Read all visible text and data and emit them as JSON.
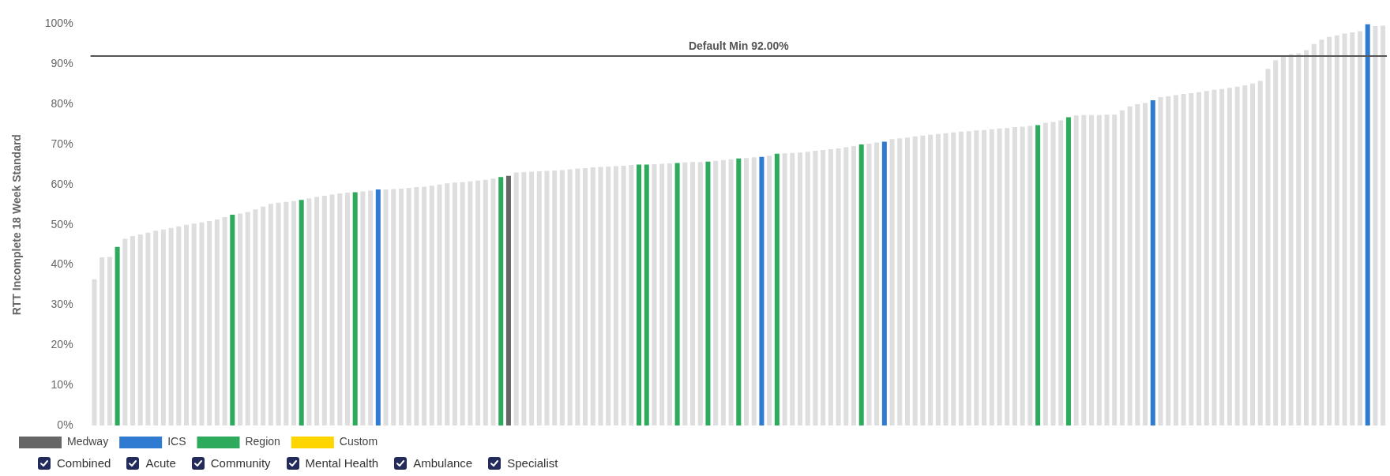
{
  "chart_data": {
    "type": "bar",
    "ylabel": "RTT Incomplete 18 Week Standard",
    "categories": [
      null,
      null,
      null,
      null,
      null,
      null,
      null,
      null,
      null,
      null,
      null,
      null,
      null,
      null,
      null,
      null,
      null,
      null,
      null,
      null,
      null,
      null,
      null,
      null,
      null,
      null,
      null,
      null,
      null,
      null,
      null,
      null,
      null,
      null,
      null,
      null,
      null,
      null,
      null,
      null,
      null,
      null,
      null,
      null,
      null,
      null,
      null,
      null,
      null,
      null,
      null,
      null,
      null,
      null,
      null,
      null,
      null,
      null,
      null,
      null,
      null,
      null,
      null,
      null,
      null,
      null,
      null,
      null,
      null,
      null,
      null,
      null,
      null,
      null,
      null,
      null,
      null,
      null,
      null,
      null,
      null,
      null,
      null,
      null,
      null,
      null,
      null,
      null,
      null,
      null,
      null,
      null,
      null,
      null,
      null,
      null,
      null,
      null,
      null,
      null,
      null,
      null,
      null,
      null,
      null,
      null,
      null,
      null,
      null,
      null,
      null,
      null,
      null,
      null,
      null,
      null,
      null,
      null,
      null,
      null,
      null,
      null,
      null,
      null,
      null,
      null,
      null,
      null,
      null,
      null,
      null,
      null,
      null,
      null,
      null,
      null,
      null,
      null,
      null,
      null,
      null,
      null,
      null,
      null,
      null,
      null,
      null,
      null,
      null,
      null,
      null,
      null,
      null,
      null,
      null,
      null,
      null,
      null,
      null,
      null,
      null,
      null,
      null,
      null,
      null,
      null,
      null,
      null,
      null
    ],
    "series": [
      {
        "name": "Medway",
        "color": "#666666",
        "values": [
          null,
          null,
          null,
          null,
          null,
          null,
          null,
          null,
          null,
          null,
          null,
          null,
          null,
          null,
          null,
          null,
          null,
          null,
          null,
          null,
          null,
          null,
          null,
          null,
          null,
          null,
          null,
          null,
          null,
          null,
          null,
          null,
          null,
          null,
          null,
          null,
          null,
          null,
          null,
          null,
          null,
          null,
          null,
          null,
          null,
          null,
          null,
          null,
          null,
          null,
          null,
          null,
          null,
          null,
          62.2,
          null,
          null,
          null,
          null,
          null,
          null,
          null,
          null,
          null,
          null,
          null,
          null,
          null,
          null,
          null,
          null,
          null,
          null,
          null,
          null,
          null,
          null,
          null,
          null,
          null,
          null,
          null,
          null,
          null,
          null,
          null,
          null,
          null,
          null,
          null,
          null,
          null,
          null,
          null,
          null,
          null,
          null,
          null,
          null,
          null,
          null,
          null,
          null,
          null,
          null,
          null,
          null,
          null,
          null,
          null,
          null,
          null,
          null,
          null,
          null,
          null,
          null,
          null,
          null,
          null,
          null,
          null,
          null,
          null,
          null,
          null,
          null,
          null,
          null,
          null,
          null,
          null,
          null,
          null,
          null,
          null,
          null,
          null,
          null,
          null,
          null,
          null,
          null,
          null,
          null,
          null,
          null,
          null,
          null,
          null,
          null,
          null,
          null,
          null,
          null,
          null,
          null,
          null,
          null,
          null,
          null,
          null,
          null,
          null,
          null,
          null,
          null,
          null,
          null
        ]
      },
      {
        "name": "ICS",
        "color": "#2f7bd1",
        "values": [
          null,
          null,
          null,
          null,
          null,
          null,
          null,
          null,
          null,
          null,
          null,
          null,
          null,
          null,
          null,
          null,
          null,
          null,
          null,
          null,
          null,
          null,
          null,
          null,
          null,
          null,
          null,
          null,
          null,
          null,
          null,
          null,
          null,
          null,
          null,
          null,
          null,
          58.8,
          null,
          null,
          null,
          null,
          null,
          null,
          null,
          null,
          null,
          null,
          null,
          null,
          null,
          null,
          null,
          null,
          null,
          null,
          null,
          null,
          null,
          null,
          null,
          null,
          null,
          null,
          null,
          null,
          null,
          null,
          null,
          null,
          null,
          null,
          null,
          null,
          null,
          null,
          null,
          null,
          null,
          null,
          null,
          null,
          null,
          null,
          null,
          null,
          null,
          66.9,
          null,
          null,
          null,
          null,
          null,
          null,
          null,
          null,
          null,
          null,
          null,
          null,
          null,
          null,
          null,
          70.7,
          null,
          null,
          null,
          null,
          null,
          null,
          null,
          null,
          null,
          null,
          null,
          null,
          null,
          null,
          null,
          null,
          null,
          null,
          null,
          null,
          null,
          null,
          null,
          null,
          null,
          null,
          null,
          null,
          null,
          null,
          null,
          null,
          null,
          null,
          81.0,
          null,
          null,
          null,
          null,
          null,
          null,
          null,
          null,
          null,
          null,
          null,
          null,
          null,
          null,
          null,
          null,
          null,
          null,
          null,
          null,
          null,
          null,
          null,
          null,
          null,
          null,
          null,
          100,
          null,
          null
        ]
      },
      {
        "name": "Region",
        "color": "#2eaa5c",
        "values": [
          null,
          null,
          null,
          44.5,
          null,
          null,
          null,
          null,
          null,
          null,
          null,
          null,
          null,
          null,
          null,
          null,
          null,
          null,
          52.5,
          null,
          null,
          null,
          null,
          null,
          null,
          null,
          null,
          56.2,
          null,
          null,
          null,
          null,
          null,
          null,
          58.1,
          null,
          null,
          null,
          null,
          null,
          null,
          null,
          null,
          null,
          null,
          null,
          null,
          null,
          null,
          null,
          null,
          null,
          null,
          61.9,
          null,
          null,
          null,
          null,
          null,
          null,
          null,
          null,
          null,
          null,
          null,
          null,
          null,
          null,
          null,
          null,
          null,
          65.0,
          65.0,
          null,
          null,
          null,
          65.4,
          null,
          null,
          null,
          65.7,
          null,
          null,
          null,
          66.5,
          null,
          null,
          null,
          null,
          67.7,
          null,
          null,
          null,
          null,
          null,
          null,
          null,
          null,
          null,
          null,
          70.0,
          null,
          null,
          null,
          null,
          null,
          null,
          null,
          null,
          null,
          null,
          null,
          null,
          null,
          null,
          null,
          null,
          null,
          null,
          null,
          null,
          null,
          null,
          74.8,
          null,
          null,
          null,
          76.8,
          null,
          null,
          null,
          null,
          null,
          null,
          null,
          null,
          null,
          null,
          null,
          null,
          null,
          null,
          null,
          null,
          null,
          null,
          null,
          null,
          null,
          null,
          null,
          null,
          null,
          null,
          null,
          null,
          null,
          null,
          null,
          null,
          null,
          null,
          null,
          null,
          null,
          null,
          null,
          null,
          null
        ]
      },
      {
        "name": "Custom",
        "color": "#ffd500",
        "values": [
          null,
          null,
          null,
          null,
          null,
          null,
          null,
          null,
          null,
          null,
          null,
          null,
          null,
          null,
          null,
          null,
          null,
          null,
          null,
          null,
          null,
          null,
          null,
          null,
          null,
          null,
          null,
          null,
          null,
          null,
          null,
          null,
          null,
          null,
          null,
          null,
          null,
          null,
          null,
          null,
          null,
          null,
          null,
          null,
          null,
          null,
          null,
          null,
          null,
          null,
          null,
          null,
          null,
          null,
          null,
          null,
          null,
          null,
          null,
          null,
          null,
          null,
          null,
          null,
          null,
          null,
          null,
          null,
          null,
          null,
          null,
          null,
          null,
          null,
          null,
          null,
          null,
          null,
          null,
          null,
          null,
          null,
          null,
          null,
          null,
          null,
          null,
          null,
          null,
          null,
          null,
          null,
          null,
          null,
          null,
          null,
          null,
          null,
          null,
          null,
          null,
          null,
          null,
          null,
          null,
          null,
          null,
          null,
          null,
          null,
          null,
          null,
          null,
          null,
          null,
          null,
          null,
          null,
          null,
          null,
          null,
          null,
          null,
          null,
          null,
          null,
          null,
          null,
          null,
          null,
          null,
          null,
          null,
          null,
          null,
          null,
          null,
          null,
          null,
          null,
          null,
          null,
          null,
          null,
          null,
          null,
          null,
          null,
          null,
          null,
          null,
          null,
          null,
          null,
          null,
          null,
          null,
          null,
          null,
          null,
          null,
          null,
          null,
          null,
          null,
          null,
          null,
          null,
          null
        ]
      },
      {
        "color": "#dedede",
        "values": [
          36.4,
          41.9,
          42.0,
          null,
          46.5,
          47.2,
          47.6,
          48.0,
          48.5,
          48.8,
          49.2,
          49.6,
          50.0,
          50.3,
          50.6,
          50.9,
          51.3,
          51.9,
          null,
          52.8,
          53.2,
          53.8,
          54.5,
          55.2,
          55.5,
          55.7,
          55.9,
          null,
          56.6,
          56.9,
          57.2,
          57.5,
          57.8,
          58.0,
          null,
          58.3,
          58.5,
          null,
          58.8,
          58.9,
          59.0,
          59.2,
          59.4,
          59.5,
          59.7,
          60.0,
          60.3,
          60.5,
          60.6,
          60.8,
          61.0,
          61.2,
          61.5,
          null,
          null,
          63.0,
          63.1,
          63.2,
          63.3,
          63.4,
          63.5,
          63.6,
          63.8,
          64.0,
          64.1,
          64.3,
          64.4,
          64.5,
          64.6,
          64.7,
          64.9,
          null,
          null,
          65.1,
          65.2,
          65.3,
          null,
          65.5,
          65.6,
          65.6,
          null,
          65.9,
          66.1,
          66.3,
          null,
          66.6,
          66.8,
          null,
          67.2,
          null,
          67.8,
          67.9,
          68.0,
          68.2,
          68.4,
          68.6,
          68.8,
          69.0,
          69.3,
          69.6,
          null,
          70.2,
          70.5,
          null,
          71.3,
          71.5,
          71.7,
          72.0,
          72.2,
          72.4,
          72.6,
          72.8,
          73.0,
          73.2,
          73.3,
          73.5,
          73.6,
          73.8,
          74.0,
          74.1,
          74.3,
          74.4,
          74.6,
          null,
          75.4,
          75.6,
          76.0,
          null,
          77.2,
          77.3,
          77.3,
          77.3,
          77.4,
          77.4,
          78.5,
          79.5,
          80.0,
          80.3,
          null,
          81.8,
          82.0,
          82.3,
          82.6,
          82.8,
          83.0,
          83.3,
          83.6,
          83.8,
          84.1,
          84.4,
          84.7,
          85.2,
          85.8,
          88.8,
          91.0,
          92.0,
          92.5,
          92.7,
          93.5,
          95.0,
          96.1,
          96.8,
          97.2,
          97.6,
          97.9,
          98.2,
          null,
          99.5,
          99.6
        ]
      }
    ],
    "ylim": [
      0,
      100
    ],
    "yticks": [
      {
        "value": 0,
        "label": "0%"
      },
      {
        "value": 10,
        "label": "10%"
      },
      {
        "value": 20,
        "label": "20%"
      },
      {
        "value": 30,
        "label": "30%"
      },
      {
        "value": 40,
        "label": "40%"
      },
      {
        "value": 50,
        "label": "50%"
      },
      {
        "value": 60,
        "label": "60%"
      },
      {
        "value": 70,
        "label": "70%"
      },
      {
        "value": 80,
        "label": "80%"
      },
      {
        "value": 90,
        "label": "90%"
      },
      {
        "value": 100,
        "label": "100%"
      }
    ],
    "ref_lines": [
      {
        "axis": "y",
        "value": 92,
        "label": "Default Min 92.00%",
        "color": "#555555"
      }
    ],
    "legend": "bottom left",
    "annotations": [
      "Combined",
      "Acute",
      "Community",
      "Mental Health",
      "Ambulance",
      "Specialist"
    ]
  }
}
